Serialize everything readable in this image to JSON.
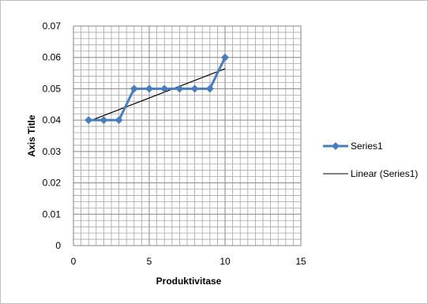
{
  "chart_data": {
    "type": "scatter",
    "xlabel": "Produktivitase",
    "ylabel": "Axis Title",
    "xlim": [
      0,
      15
    ],
    "ylim": [
      0,
      0.07
    ],
    "x_ticks": [
      "0",
      "5",
      "10",
      "15"
    ],
    "y_ticks": [
      "0",
      "0.01",
      "0.02",
      "0.03",
      "0.04",
      "0.05",
      "0.06",
      "0.07"
    ],
    "grid": true,
    "legend_position": "right",
    "series": [
      {
        "name": "Series1",
        "color": "#4a7ebb",
        "marker": "diamond",
        "x": [
          1,
          2,
          3,
          4,
          5,
          6,
          7,
          8,
          9,
          10
        ],
        "y": [
          0.04,
          0.04,
          0.04,
          0.05,
          0.05,
          0.05,
          0.05,
          0.05,
          0.05,
          0.06
        ]
      },
      {
        "name": "Linear (Series1)",
        "type": "trendline",
        "color": "#000000",
        "x": [
          1,
          10
        ],
        "y": [
          0.0396,
          0.0564
        ]
      }
    ]
  }
}
